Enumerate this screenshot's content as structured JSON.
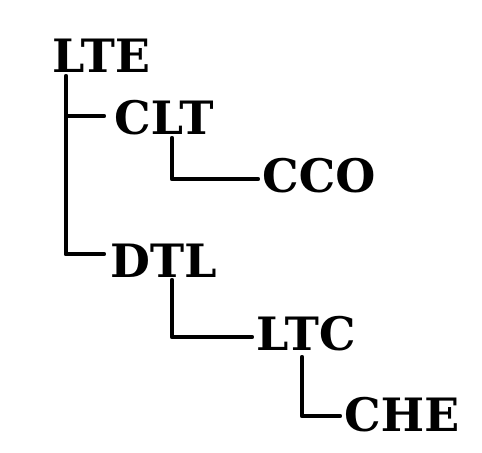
{
  "tree": {
    "root": "LTE",
    "nodes": [
      {
        "id": "lte",
        "label": "LTE",
        "parent": null
      },
      {
        "id": "clt",
        "label": "CLT",
        "parent": "lte"
      },
      {
        "id": "cco",
        "label": "CCO",
        "parent": "clt"
      },
      {
        "id": "dtl",
        "label": "DTL",
        "parent": "lte"
      },
      {
        "id": "ltc",
        "label": "LTC",
        "parent": "dtl"
      },
      {
        "id": "che",
        "label": "CHE",
        "parent": "ltc"
      }
    ]
  }
}
